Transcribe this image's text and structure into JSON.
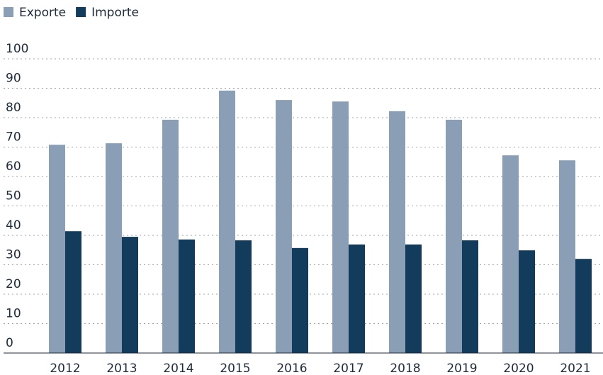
{
  "chart_data": {
    "type": "bar",
    "categories": [
      "2012",
      "2013",
      "2014",
      "2015",
      "2016",
      "2017",
      "2018",
      "2019",
      "2020",
      "2021"
    ],
    "series": [
      {
        "name": "Exporte",
        "color": "#8a9fb5",
        "values": [
          70.8,
          71.3,
          79.3,
          89.2,
          86.0,
          85.5,
          82.2,
          79.3,
          67.2,
          65.5
        ]
      },
      {
        "name": "Importe",
        "color": "#133b5c",
        "values": [
          41.4,
          39.5,
          38.6,
          38.3,
          35.7,
          36.9,
          36.9,
          38.3,
          34.9,
          32.0
        ]
      }
    ],
    "ylim": [
      0,
      100
    ],
    "yticks": [
      0,
      10,
      20,
      30,
      40,
      50,
      60,
      70,
      80,
      90,
      100
    ],
    "grid": true,
    "legend": "top-left"
  }
}
